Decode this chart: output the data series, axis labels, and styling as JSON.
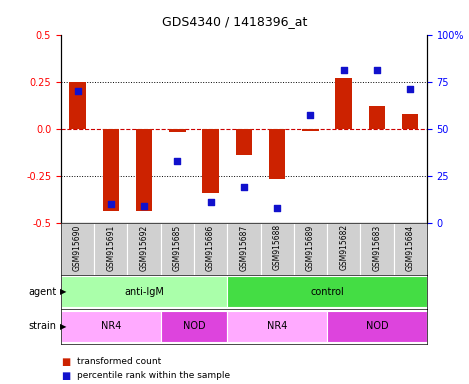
{
  "title": "GDS4340 / 1418396_at",
  "samples": [
    "GSM915690",
    "GSM915691",
    "GSM915692",
    "GSM915685",
    "GSM915686",
    "GSM915687",
    "GSM915688",
    "GSM915689",
    "GSM915682",
    "GSM915683",
    "GSM915684"
  ],
  "transformed_count": [
    0.25,
    -0.44,
    -0.44,
    -0.02,
    -0.34,
    -0.14,
    -0.27,
    -0.01,
    0.27,
    0.12,
    0.08
  ],
  "percentile_rank": [
    70,
    10,
    9,
    33,
    11,
    19,
    8,
    57,
    81,
    81,
    71
  ],
  "ylim": [
    -0.5,
    0.5
  ],
  "yticks_left": [
    -0.5,
    -0.25,
    0.0,
    0.25,
    0.5
  ],
  "yticks_right": [
    0,
    25,
    50,
    75,
    100
  ],
  "right_yticklabels": [
    "0",
    "25",
    "50",
    "75",
    "100%"
  ],
  "bar_color": "#cc2200",
  "scatter_color": "#1111cc",
  "bg_color": "#f0f0f0",
  "plot_bg": "#ffffff",
  "agent_groups": [
    {
      "label": "anti-IgM",
      "start": 0,
      "end": 5,
      "color": "#aaffaa"
    },
    {
      "label": "control",
      "start": 5,
      "end": 11,
      "color": "#44dd44"
    }
  ],
  "strain_groups": [
    {
      "label": "NR4",
      "start": 0,
      "end": 3,
      "color": "#ffaaff"
    },
    {
      "label": "NOD",
      "start": 3,
      "end": 5,
      "color": "#dd44dd"
    },
    {
      "label": "NR4",
      "start": 5,
      "end": 8,
      "color": "#ffaaff"
    },
    {
      "label": "NOD",
      "start": 8,
      "end": 11,
      "color": "#dd44dd"
    }
  ],
  "legend_tc": "transformed count",
  "legend_pr": "percentile rank within the sample",
  "bar_width": 0.5
}
